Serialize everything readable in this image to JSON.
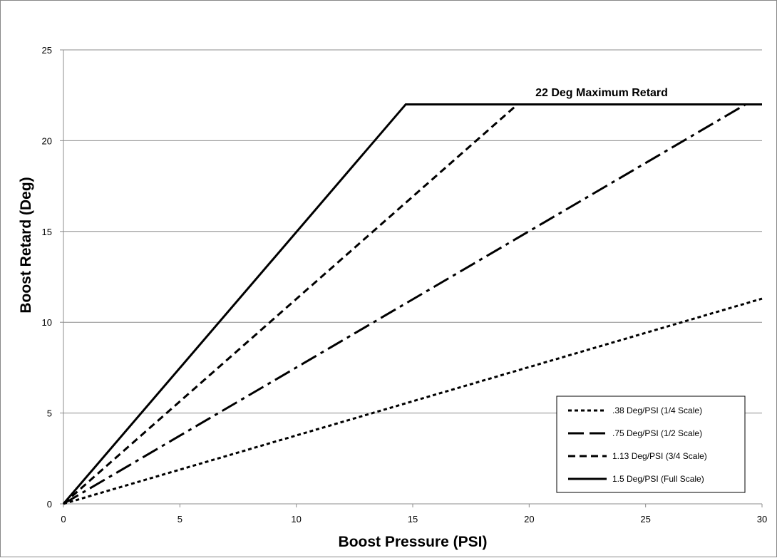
{
  "chart_data": {
    "type": "line",
    "title": "",
    "xlabel": "Boost Pressure (PSI)",
    "ylabel": "Boost Retard (Deg)",
    "xlim": [
      0,
      30
    ],
    "ylim": [
      0,
      25
    ],
    "x_ticks": [
      "0",
      "5",
      "10",
      "15",
      "20",
      "25",
      "30"
    ],
    "y_ticks": [
      "0",
      "5",
      "10",
      "15",
      "20",
      "25"
    ],
    "grid": "horizontal",
    "legend_position": "bottom-right",
    "annotation": "22 Deg Maximum Retard",
    "series": [
      {
        "name": ".38 Deg/PSI (1/4 Scale)",
        "style": "dotted",
        "x": [
          0,
          30
        ],
        "y": [
          0,
          11.3
        ]
      },
      {
        "name": ".75 Deg/PSI (1/2 Scale)",
        "style": "dash-dot",
        "x": [
          0,
          29.3,
          30
        ],
        "y": [
          0,
          22,
          22
        ]
      },
      {
        "name": "1.13 Deg/PSI (3/4 Scale)",
        "style": "dashed",
        "x": [
          0,
          19.5,
          30
        ],
        "y": [
          0,
          22,
          22
        ]
      },
      {
        "name": "1.5 Deg/PSI (Full Scale)",
        "style": "solid",
        "x": [
          0,
          14.7,
          30
        ],
        "y": [
          0,
          22,
          22
        ]
      }
    ]
  },
  "colors": {
    "line": "#000000",
    "grid": "#8c8c8c",
    "frame": "#888888",
    "background": "#ffffff"
  }
}
